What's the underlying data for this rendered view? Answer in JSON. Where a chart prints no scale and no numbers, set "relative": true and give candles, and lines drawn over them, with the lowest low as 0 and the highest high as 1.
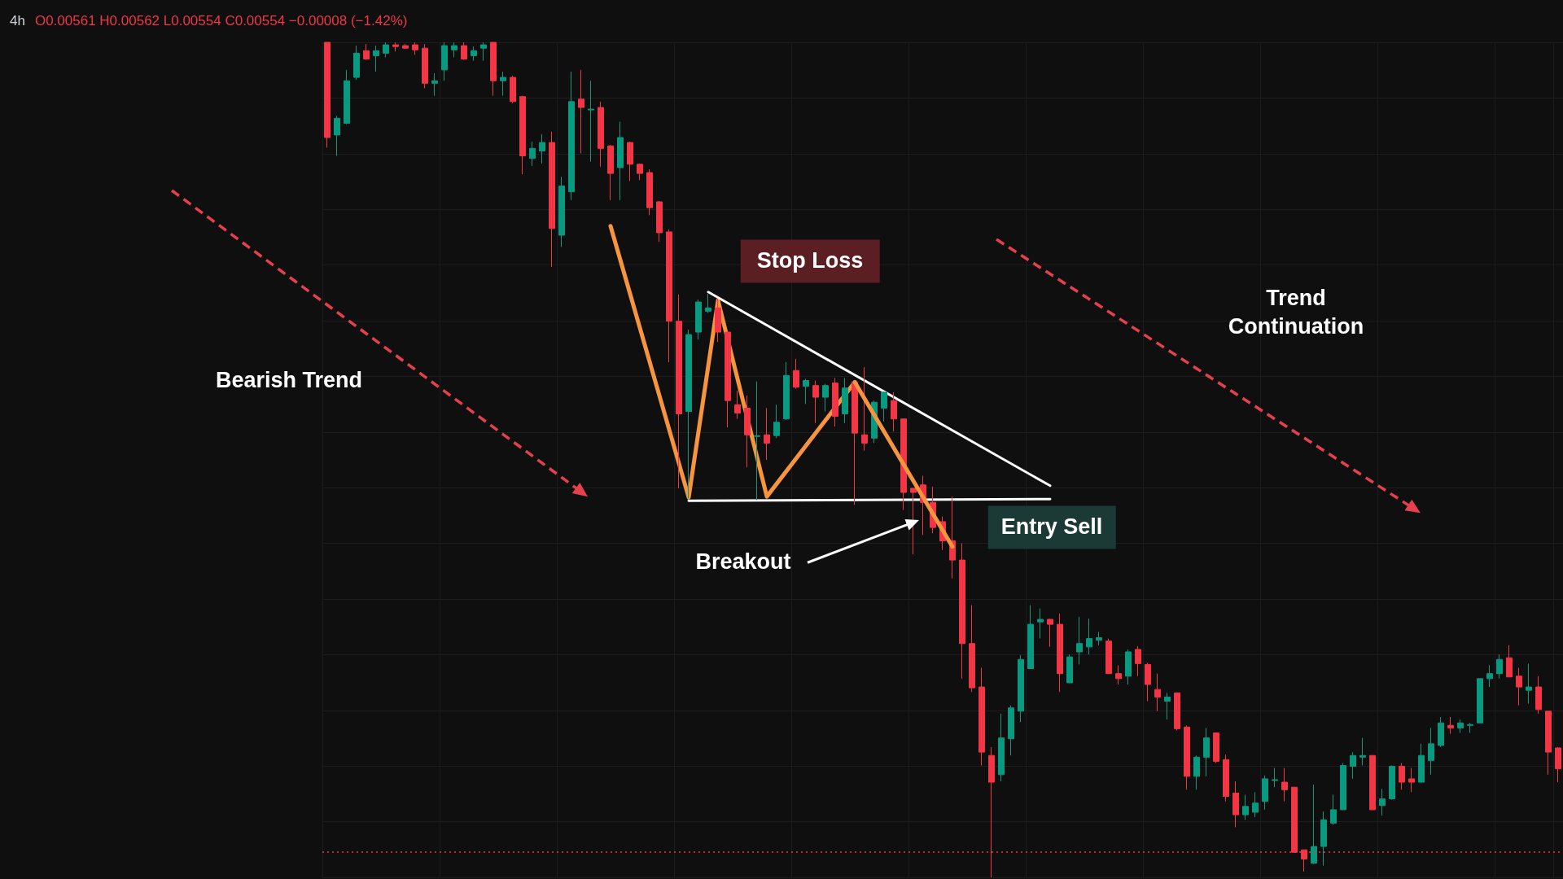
{
  "chart_data": {
    "type": "candlestick",
    "title": "4h",
    "subtitle": "O0.00561 H0.00562 L0.00554 C0.00554 −0.00008 (−1.42%)",
    "relative": true,
    "grid": true,
    "tick_labels": false,
    "marker": "none",
    "line_style": "solid",
    "categories": [
      null,
      null,
      null,
      null,
      null,
      null,
      null,
      null,
      null,
      null,
      null,
      null,
      null,
      null,
      null,
      null,
      null,
      null,
      null,
      null,
      null,
      null,
      null,
      null,
      null,
      null,
      null,
      null,
      null,
      null,
      null,
      null,
      null,
      null,
      null,
      null,
      null,
      null,
      null,
      null,
      null,
      null,
      null,
      null,
      null,
      null,
      null,
      null,
      null,
      null,
      null,
      null,
      null,
      null,
      null,
      null,
      null,
      null,
      null,
      null,
      null,
      null,
      null,
      null,
      null,
      null,
      null,
      null,
      null,
      null,
      null,
      null,
      null,
      null,
      null,
      null,
      null,
      null,
      null,
      null,
      null,
      null,
      null,
      null,
      null,
      null,
      null,
      null,
      null,
      null,
      null,
      null,
      null,
      null,
      null,
      null,
      null,
      null,
      null,
      null,
      null,
      null,
      null,
      null,
      null,
      null,
      null,
      null,
      null,
      null,
      null,
      null,
      null,
      null,
      null,
      null,
      null,
      null,
      null,
      null,
      null,
      null,
      null,
      null,
      null,
      null,
      null
    ],
    "series": [
      {
        "type": "candlestick",
        "ohlc": [
          [
            1,
            1,
            0.874,
            0.886
          ],
          [
            0.889,
            0.912,
            0.864,
            0.909
          ],
          [
            0.903,
            0.967,
            0.902,
            0.954
          ],
          [
            0.958,
            0.996,
            0.955,
            0.987
          ],
          [
            0.99,
            0.998,
            0.979,
            0.98
          ],
          [
            0.984,
            0.996,
            0.965,
            0.99
          ],
          [
            0.987,
            1,
            0.982,
            0.997
          ],
          [
            0.997,
            1,
            0.989,
            0.995
          ],
          [
            0.996,
            0.998,
            0.992,
            0.993
          ],
          [
            0.997,
            1,
            0.985,
            0.991
          ],
          [
            0.993,
            0.998,
            0.945,
            0.951
          ],
          [
            0.951,
            0.963,
            0.936,
            0.954
          ],
          [
            0.967,
            1,
            0.954,
            0.996
          ],
          [
            0.991,
            1,
            0.982,
            0.996
          ],
          [
            0.996,
            1,
            0.979,
            0.98
          ],
          [
            0.984,
            0.995,
            0.978,
            0.99
          ],
          [
            0.993,
            1,
            0.978,
            0.997
          ],
          [
            1,
            1,
            0.936,
            0.954
          ],
          [
            0.954,
            0.965,
            0.936,
            0.958
          ],
          [
            0.958,
            0.96,
            0.927,
            0.929
          ],
          [
            0.935,
            0.936,
            0.842,
            0.864
          ],
          [
            0.861,
            0.881,
            0.852,
            0.873
          ],
          [
            0.87,
            0.89,
            0.855,
            0.88
          ],
          [
            0.88,
            0.893,
            0.731,
            0.777
          ],
          [
            0.769,
            0.839,
            0.755,
            0.828
          ],
          [
            0.821,
            0.965,
            0.811,
            0.929
          ],
          [
            0.932,
            0.967,
            0.867,
            0.922
          ],
          [
            0.919,
            0.954,
            0.857,
            0.92
          ],
          [
            0.922,
            0.929,
            0.851,
            0.873
          ],
          [
            0.876,
            0.877,
            0.811,
            0.843
          ],
          [
            0.85,
            0.905,
            0.811,
            0.886
          ],
          [
            0.88,
            0.881,
            0.834,
            0.854
          ],
          [
            0.854,
            0.855,
            0.835,
            0.843
          ],
          [
            0.844,
            0.848,
            0.793,
            0.802
          ],
          [
            0.809,
            0.81,
            0.761,
            0.772
          ],
          [
            0.773,
            0.776,
            0.617,
            0.666
          ],
          [
            0.666,
            0.698,
            0.466,
            0.555
          ],
          [
            0.558,
            0.656,
            0.454,
            0.65
          ],
          [
            0.653,
            0.692,
            0.644,
            0.689
          ],
          [
            0.678,
            0.699,
            0.676,
            0.682
          ],
          [
            0.682,
            0.693,
            0.641,
            0.653
          ],
          [
            0.653,
            0.653,
            0.539,
            0.571
          ],
          [
            0.566,
            0.583,
            0.549,
            0.556
          ],
          [
            0.562,
            0.577,
            0.491,
            0.53
          ],
          [
            0.528,
            0.594,
            0.452,
            0.529
          ],
          [
            0.53,
            0.562,
            0.5,
            0.52
          ],
          [
            0.529,
            0.566,
            0.526,
            0.545
          ],
          [
            0.549,
            0.617,
            0.548,
            0.601
          ],
          [
            0.607,
            0.621,
            0.585,
            0.587
          ],
          [
            0.588,
            0.597,
            0.567,
            0.595
          ],
          [
            0.589,
            0.595,
            0.544,
            0.575
          ],
          [
            0.575,
            0.591,
            0.558,
            0.589
          ],
          [
            0.592,
            0.598,
            0.54,
            0.552
          ],
          [
            0.555,
            0.598,
            0.544,
            0.586
          ],
          [
            0.593,
            0.594,
            0.446,
            0.532
          ],
          [
            0.53,
            0.611,
            0.511,
            0.52
          ],
          [
            0.526,
            0.571,
            0.52,
            0.569
          ],
          [
            0.562,
            0.582,
            0.546,
            0.581
          ],
          [
            0.571,
            0.581,
            0.534,
            0.549
          ],
          [
            0.549,
            0.549,
            0.44,
            0.461
          ],
          [
            0.466,
            0.466,
            0.387,
            0.461
          ],
          [
            0.47,
            0.481,
            0.41,
            0.449
          ],
          [
            0.449,
            0.468,
            0.412,
            0.419
          ],
          [
            0.426,
            0.432,
            0.392,
            0.403
          ],
          [
            0.403,
            0.456,
            0.358,
            0.38
          ],
          [
            0.38,
            0.4,
            0.238,
            0.28
          ],
          [
            0.28,
            0.326,
            0.222,
            0.227
          ],
          [
            0.228,
            0.251,
            0.134,
            0.15
          ],
          [
            0.146,
            0.156,
            0,
            0.114
          ],
          [
            0.123,
            0.196,
            0.115,
            0.167
          ],
          [
            0.166,
            0.206,
            0.146,
            0.203
          ],
          [
            0.199,
            0.266,
            0.186,
            0.261
          ],
          [
            0.25,
            0.326,
            0.25,
            0.303
          ],
          [
            0.306,
            0.322,
            0.286,
            0.309
          ],
          [
            0.309,
            0.31,
            0.276,
            0.303
          ],
          [
            0.303,
            0.316,
            0.222,
            0.244
          ],
          [
            0.233,
            0.267,
            0.233,
            0.264
          ],
          [
            0.27,
            0.312,
            0.255,
            0.28
          ],
          [
            0.276,
            0.31,
            0.267,
            0.286
          ],
          [
            0.284,
            0.294,
            0.278,
            0.287
          ],
          [
            0.283,
            0.286,
            0.244,
            0.244
          ],
          [
            0.244,
            0.254,
            0.231,
            0.238
          ],
          [
            0.241,
            0.273,
            0.231,
            0.27
          ],
          [
            0.273,
            0.277,
            0.241,
            0.256
          ],
          [
            0.255,
            0.257,
            0.211,
            0.231
          ],
          [
            0.225,
            0.244,
            0.199,
            0.216
          ],
          [
            0.211,
            0.221,
            0.189,
            0.216
          ],
          [
            0.221,
            0.221,
            0.176,
            0.178
          ],
          [
            0.18,
            0.182,
            0.105,
            0.121
          ],
          [
            0.121,
            0.146,
            0.105,
            0.144
          ],
          [
            0.144,
            0.179,
            0.121,
            0.167
          ],
          [
            0.173,
            0.173,
            0.137,
            0.139
          ],
          [
            0.141,
            0.147,
            0.091,
            0.097
          ],
          [
            0.101,
            0.115,
            0.06,
            0.075
          ],
          [
            0.075,
            0.099,
            0.069,
            0.085
          ],
          [
            0.078,
            0.102,
            0.072,
            0.089
          ],
          [
            0.091,
            0.122,
            0.081,
            0.118
          ],
          [
            0.116,
            0.131,
            0.108,
            0.117
          ],
          [
            0.114,
            0.131,
            0.091,
            0.105
          ],
          [
            0.108,
            0.108,
            0.03,
            0.03
          ],
          [
            0.033,
            0.033,
            0.007,
            0.022
          ],
          [
            0.017,
            0.111,
            0.016,
            0.037
          ],
          [
            0.037,
            0.079,
            0.014,
            0.069
          ],
          [
            0.065,
            0.099,
            0.063,
            0.081
          ],
          [
            0.081,
            0.137,
            0.081,
            0.134
          ],
          [
            0.133,
            0.15,
            0.118,
            0.146
          ],
          [
            0.144,
            0.167,
            0.134,
            0.146
          ],
          [
            0.146,
            0.146,
            0.081,
            0.081
          ],
          [
            0.086,
            0.106,
            0.074,
            0.094
          ],
          [
            0.094,
            0.134,
            0.093,
            0.133
          ],
          [
            0.133,
            0.137,
            0.105,
            0.114
          ],
          [
            0.118,
            0.131,
            0.102,
            0.114
          ],
          [
            0.114,
            0.16,
            0.114,
            0.146
          ],
          [
            0.14,
            0.179,
            0.123,
            0.16
          ],
          [
            0.158,
            0.192,
            0.156,
            0.185
          ],
          [
            0.182,
            0.192,
            0.172,
            0.179
          ],
          [
            0.179,
            0.189,
            0.173,
            0.185
          ],
          [
            0.182,
            0.185,
            0.173,
            0.183
          ],
          [
            0.185,
            0.238,
            0.185,
            0.238
          ],
          [
            0.238,
            0.254,
            0.228,
            0.244
          ],
          [
            0.244,
            0.267,
            0.238,
            0.261
          ],
          [
            0.263,
            0.278,
            0.24,
            0.24
          ],
          [
            0.241,
            0.251,
            0.206,
            0.228
          ],
          [
            0.224,
            0.256,
            0.208,
            0.228
          ],
          [
            0.228,
            0.241,
            0.196,
            0.201
          ],
          [
            0.199,
            0.199,
            0.123,
            0.15
          ],
          [
            0.155,
            0.156,
            0.114,
            0.13
          ]
        ],
        "colors": [
          "#f23645",
          "#089981",
          "#089981",
          "#089981",
          "#f23645",
          "#089981",
          "#089981",
          "#f23645",
          "#f23645",
          "#f23645",
          "#f23645",
          "#089981",
          "#089981",
          "#089981",
          "#f23645",
          "#089981",
          "#089981",
          "#f23645",
          "#089981",
          "#f23645",
          "#f23645",
          "#089981",
          "#089981",
          "#f23645",
          "#089981",
          "#089981",
          "#f23645",
          "#089981",
          "#f23645",
          "#f23645",
          "#089981",
          "#f23645",
          "#f23645",
          "#f23645",
          "#f23645",
          "#f23645",
          "#f23645",
          "#089981",
          "#089981",
          "#089981",
          "#f23645",
          "#f23645",
          "#f23645",
          "#f23645",
          "#089981",
          "#f23645",
          "#089981",
          "#089981",
          "#f23645",
          "#089981",
          "#f23645",
          "#089981",
          "#f23645",
          "#089981",
          "#f23645",
          "#f23645",
          "#089981",
          "#089981",
          "#f23645",
          "#f23645",
          "#f23645",
          "#f23645",
          "#f23645",
          "#f23645",
          "#f23645",
          "#f23645",
          "#f23645",
          "#f23645",
          "#f23645",
          "#089981",
          "#089981",
          "#089981",
          "#089981",
          "#089981",
          "#f23645",
          "#f23645",
          "#089981",
          "#089981",
          "#089981",
          "#089981",
          "#f23645",
          "#f23645",
          "#089981",
          "#f23645",
          "#f23645",
          "#f23645",
          "#089981",
          "#f23645",
          "#f23645",
          "#089981",
          "#089981",
          "#f23645",
          "#f23645",
          "#f23645",
          "#089981",
          "#089981",
          "#089981",
          "#089981",
          "#f23645",
          "#f23645",
          "#f23645",
          "#089981",
          "#089981",
          "#089981",
          "#089981",
          "#089981",
          "#089981",
          "#f23645",
          "#089981",
          "#089981",
          "#f23645",
          "#f23645",
          "#089981",
          "#089981",
          "#089981",
          "#f23645",
          "#089981",
          "#089981",
          "#089981",
          "#089981",
          "#089981",
          "#f23645",
          "#f23645",
          "#089981",
          "#f23645",
          "#f23645",
          "#f23645"
        ]
      },
      {
        "type": "line",
        "color": "#f7953f",
        "values": [
          null,
          null,
          null,
          null,
          null,
          null,
          null,
          null,
          null,
          null,
          null,
          null,
          null,
          null,
          null,
          null,
          null,
          null,
          null,
          null,
          null,
          null,
          null,
          null,
          null,
          null,
          null,
          null,
          null,
          0.78,
          null,
          null,
          null,
          null,
          null,
          null,
          null,
          0.455,
          null,
          null,
          0.691,
          null,
          null,
          null,
          null,
          0.456,
          null,
          null,
          null,
          null,
          null,
          null,
          null,
          null,
          0.593,
          null,
          null,
          null,
          null,
          null,
          null,
          null,
          null,
          null,
          null,
          null,
          null,
          null,
          null,
          null,
          null,
          null,
          null,
          null,
          null,
          null,
          null,
          null,
          null,
          null,
          null,
          null,
          null,
          null,
          null,
          null,
          null,
          null,
          null,
          null,
          null,
          null,
          null,
          null,
          null,
          null,
          null,
          null,
          null,
          null,
          null,
          null,
          null,
          null,
          null,
          null,
          null,
          null,
          null,
          null,
          null,
          null,
          null,
          null,
          null,
          null,
          null,
          null,
          null,
          null,
          null,
          null,
          null,
          null,
          null,
          null,
          null
        ]
      },
      {
        "type": "line",
        "color": "#f7953f",
        "values": [
          null,
          null,
          null,
          null,
          null,
          null,
          null,
          null,
          null,
          null,
          null,
          null,
          null,
          null,
          null,
          null,
          null,
          null,
          null,
          null,
          null,
          null,
          null,
          null,
          null,
          null,
          null,
          null,
          null,
          null,
          null,
          null,
          null,
          null,
          null,
          null,
          null,
          null,
          null,
          null,
          null,
          null,
          null,
          null,
          null,
          null,
          null,
          null,
          null,
          null,
          null,
          null,
          null,
          null,
          0.593,
          null,
          null,
          null,
          null,
          null,
          null,
          null,
          null,
          null,
          0.396,
          null,
          null,
          null,
          null,
          null,
          null,
          null,
          null,
          null,
          null,
          null,
          null,
          null,
          null,
          null,
          null,
          null,
          null,
          null,
          null,
          null,
          null,
          null,
          null,
          null,
          null,
          null,
          null,
          null,
          null,
          null,
          null,
          null,
          null,
          null,
          null,
          null,
          null,
          null,
          null,
          null,
          null,
          null,
          null,
          null,
          null,
          null,
          null,
          null,
          null,
          null,
          null,
          null,
          null,
          null,
          null,
          null,
          null,
          null,
          null,
          null,
          null
        ]
      },
      {
        "type": "line",
        "color": "#ffffff",
        "values": [
          null,
          null,
          null,
          null,
          null,
          null,
          null,
          null,
          null,
          null,
          null,
          null,
          null,
          null,
          null,
          null,
          null,
          null,
          null,
          null,
          null,
          null,
          null,
          null,
          null,
          null,
          null,
          null,
          null,
          null,
          null,
          null,
          null,
          null,
          null,
          null,
          null,
          null,
          null,
          0.701,
          null,
          null,
          null,
          null,
          null,
          null,
          null,
          null,
          null,
          null,
          null,
          null,
          null,
          null,
          null,
          null,
          null,
          null,
          null,
          null,
          null,
          null,
          null,
          null,
          null,
          null,
          null,
          null,
          null,
          null,
          null,
          null,
          null,
          null,
          0.469,
          null,
          null,
          null,
          null,
          null,
          null,
          null,
          null,
          null,
          null,
          null,
          null,
          null,
          null,
          null,
          null,
          null,
          null,
          null,
          null,
          null,
          null,
          null,
          null,
          null,
          null,
          null,
          null,
          null,
          null,
          null,
          null,
          null,
          null,
          null,
          null,
          null,
          null,
          null,
          null,
          null,
          null,
          null,
          null,
          null,
          null,
          null,
          null,
          null,
          null,
          null,
          null
        ]
      },
      {
        "type": "line",
        "color": "#ffffff",
        "values": [
          null,
          null,
          null,
          null,
          null,
          null,
          null,
          null,
          null,
          null,
          null,
          null,
          null,
          null,
          null,
          null,
          null,
          null,
          null,
          null,
          null,
          null,
          null,
          null,
          null,
          null,
          null,
          null,
          null,
          null,
          null,
          null,
          null,
          null,
          null,
          null,
          null,
          0.451,
          null,
          null,
          null,
          null,
          null,
          null,
          null,
          null,
          null,
          null,
          null,
          null,
          null,
          null,
          null,
          null,
          null,
          null,
          null,
          null,
          null,
          null,
          null,
          null,
          null,
          null,
          null,
          null,
          null,
          null,
          null,
          null,
          null,
          null,
          null,
          null,
          0.453,
          null,
          null,
          null,
          null,
          null,
          null,
          null,
          null,
          null,
          null,
          null,
          null,
          null,
          null,
          null,
          null,
          null,
          null,
          null,
          null,
          null,
          null,
          null,
          null,
          null,
          null,
          null,
          null,
          null,
          null,
          null,
          null,
          null,
          null,
          null,
          null,
          null,
          null,
          null,
          null,
          null,
          null,
          null,
          null,
          null,
          null,
          null,
          null,
          null,
          null,
          null,
          null
        ]
      }
    ],
    "ref_lines": [
      {
        "axis": "y",
        "value": 0.031,
        "color": "#f23645",
        "line_style": "dotted"
      }
    ],
    "annotations": [
      "Stop Loss",
      "Entry Sell",
      "Breakout",
      "Bearish Trend",
      "Trend Continuation"
    ]
  }
}
